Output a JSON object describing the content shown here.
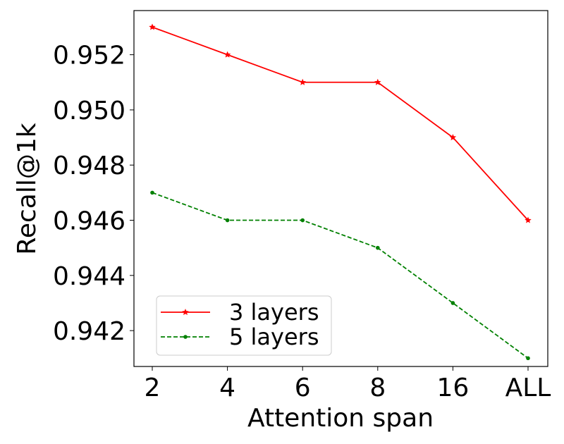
{
  "chart_data": {
    "type": "line",
    "categories": [
      "2",
      "4",
      "6",
      "8",
      "16",
      "ALL"
    ],
    "series": [
      {
        "name": "3 layers",
        "values": [
          0.953,
          0.952,
          0.951,
          0.951,
          0.949,
          0.946
        ],
        "color": "#ff0000",
        "marker": "star",
        "dash": "solid"
      },
      {
        "name": "5 layers",
        "values": [
          0.947,
          0.946,
          0.946,
          0.945,
          0.943,
          0.941
        ],
        "color": "#008000",
        "marker": "dot",
        "dash": "dashed"
      }
    ],
    "title": "",
    "xlabel": "Attention span",
    "ylabel": "Recall@1k",
    "ylim": [
      0.9407,
      0.9536
    ],
    "yticks": [
      "0.942",
      "0.944",
      "0.946",
      "0.948",
      "0.950",
      "0.952"
    ],
    "legend": "lower-left",
    "grid": false
  }
}
